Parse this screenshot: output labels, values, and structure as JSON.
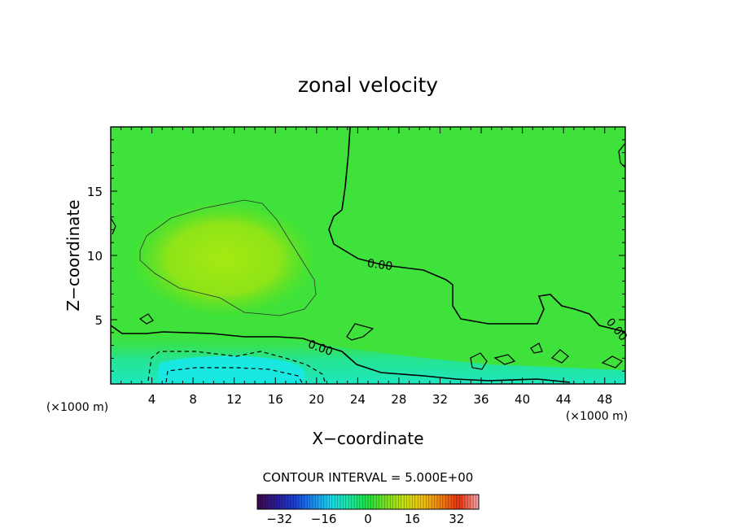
{
  "chart_data": {
    "type": "heatmap",
    "title": "zonal velocity",
    "xlabel": "X−coordinate",
    "ylabel": "Z−coordinate",
    "x_unit": "(×1000 m)",
    "y_unit": "(×1000 m)",
    "xlim": [
      0,
      50
    ],
    "ylim": [
      0,
      20
    ],
    "x_ticks": [
      4,
      8,
      12,
      16,
      20,
      24,
      28,
      32,
      36,
      40,
      44,
      48
    ],
    "x_tick_labels": [
      "4",
      "8",
      "12",
      "16",
      "20",
      "24",
      "28",
      "32",
      "36",
      "40",
      "44",
      "48"
    ],
    "y_ticks": [
      5,
      10,
      15
    ],
    "y_tick_labels": [
      "5",
      "10",
      "15"
    ],
    "contour_interval_text": "CONTOUR INTERVAL = 5.000E+00",
    "contour_interval": 5,
    "contour_labels": [
      "0.00",
      "0.00",
      "0.00"
    ],
    "colorbar": {
      "range": [
        -40,
        40
      ],
      "tick_values": [
        -32,
        -16,
        0,
        16,
        32
      ],
      "tick_labels": [
        "−32",
        "−16",
        "0",
        "16",
        "32"
      ],
      "colors": [
        "#3c0a50",
        "#2a1a9a",
        "#1a40d8",
        "#1a8cf0",
        "#1ad8e8",
        "#18e8a0",
        "#20e040",
        "#7ae020",
        "#c8e010",
        "#f0c010",
        "#f08010",
        "#e83010",
        "#f0a0a0"
      ]
    },
    "fields": {
      "background_value": 1,
      "regions": [
        {
          "name": "upper-left positive core",
          "x": [
            6,
            20
          ],
          "z": [
            6,
            15
          ],
          "value": 6
        },
        {
          "name": "near-surface negative jet",
          "x": [
            3,
            20
          ],
          "z": [
            0,
            2.5
          ],
          "value": -10
        },
        {
          "name": "surface minimum",
          "x": [
            5,
            16
          ],
          "z": [
            0,
            1
          ],
          "value": -16
        }
      ]
    },
    "grid": false,
    "legend": "colorbar-bottom"
  }
}
